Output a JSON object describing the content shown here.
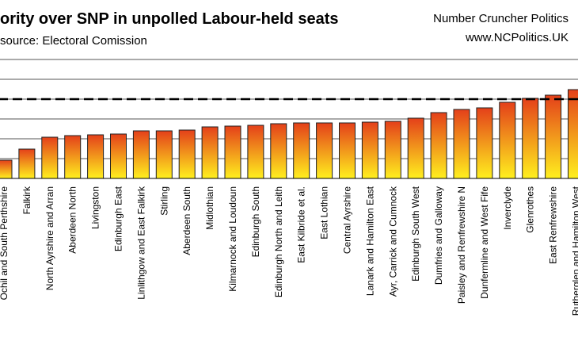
{
  "chart_data": {
    "type": "bar",
    "title": "ority over SNP in unpolled Labour-held seats",
    "subtitle": "source: Electoral Comission",
    "credit": [
      "Number Cruncher Politics",
      "www.NCPolitics.UK"
    ],
    "categories": [
      "Ochil and South Perthshire",
      "Falkirk",
      "North Ayrshire and Arran",
      "Aberdeen North",
      "Livingston",
      "Edinburgh East",
      "Linlithgow and East Falkirk",
      "Stirling",
      "Aberdeen South",
      "Midlothian",
      "Kilmarnock and Loudoun",
      "Edinburgh South",
      "Edinburgh North and Leith",
      "East Kilbride et al.",
      "East Lothian",
      "Central Ayrshire",
      "Lanark and Hamilton East",
      "Ayr, Carrick and Cumnock",
      "Edinburgh South West",
      "Dumfries and Galloway",
      "Paisley and Renfrewshire N",
      "Dunfermline and West Fife",
      "Inverclyde",
      "Glenrothes",
      "East Renfrewshire",
      "Rutherglen and Hamilton West"
    ],
    "values": [
      4.6,
      7.4,
      10.4,
      10.8,
      11,
      11.2,
      12,
      12,
      12.2,
      13,
      13.2,
      13.4,
      13.8,
      14,
      14,
      14,
      14.2,
      14.4,
      15.2,
      16.6,
      17.4,
      17.8,
      19.2,
      20.2,
      21,
      22.4
    ],
    "gradient": [
      "#e4401a",
      "#fff01e"
    ],
    "ylim": [
      0,
      30
    ],
    "yticks": [
      0,
      5,
      10,
      15,
      20,
      25,
      30
    ],
    "grid": true,
    "reference_line": 20
  }
}
